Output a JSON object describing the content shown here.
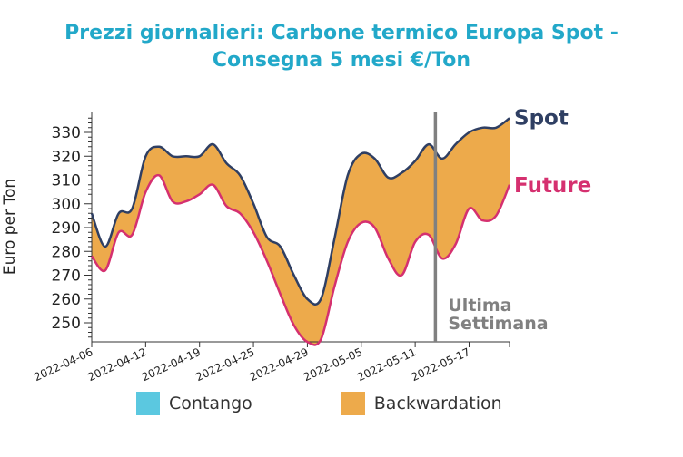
{
  "title_line1": "Prezzi giornalieri: Carbone termico Europa Spot -",
  "title_line2": "Consegna 5 mesi €/Ton",
  "colors": {
    "title": "#22a8c9",
    "spot": "#2f3f63",
    "future": "#d5306f",
    "backwardation": "#edaa4b",
    "contango": "#5bc8e0",
    "marker": "#808080"
  },
  "legend": [
    {
      "label": "Contango",
      "color": "#5bc8e0"
    },
    {
      "label": "Backwardation",
      "color": "#edaa4b"
    }
  ],
  "chart_data": {
    "type": "area",
    "ylabel": "Euro per Ton",
    "ylim": [
      242,
      338
    ],
    "yticks": [
      250,
      260,
      270,
      280,
      290,
      300,
      310,
      320,
      330
    ],
    "x_tick_labels": [
      "2022-04-06",
      "2022-04-12",
      "2022-04-19",
      "2022-04-25",
      "2022-04-29",
      "2022-05-05",
      "2022-05-11",
      "2022-05-17"
    ],
    "x_tick_positions": [
      0,
      4,
      8,
      12,
      16,
      20,
      24,
      28
    ],
    "x_range": [
      0,
      31
    ],
    "series": [
      {
        "name": "Spot",
        "values": [
          296,
          282,
          296,
          298,
          320,
          324,
          320,
          320,
          320,
          325,
          317,
          312,
          300,
          286,
          282,
          270,
          260,
          260,
          285,
          312,
          321,
          319,
          311,
          313,
          318,
          325,
          319,
          325,
          330,
          332,
          332,
          336
        ]
      },
      {
        "name": "Future",
        "values": [
          278,
          272,
          288,
          287,
          305,
          312,
          301,
          301,
          304,
          308,
          299,
          296,
          288,
          276,
          262,
          249,
          242,
          243,
          265,
          284,
          292,
          290,
          277,
          270,
          284,
          287,
          277,
          283,
          298,
          293,
          295,
          308
        ]
      }
    ],
    "annotation": {
      "text_line1": "Ultima",
      "text_line2": "Settimana",
      "x": 25.5
    }
  }
}
